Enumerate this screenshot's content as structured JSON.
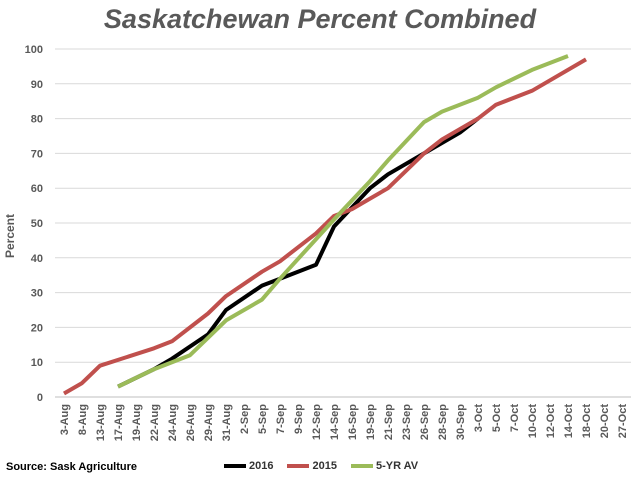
{
  "chart_data": {
    "type": "line",
    "title": "Saskatchewan Percent Combined",
    "ylabel": "Percent",
    "xlabel": "",
    "ylim": [
      0,
      100
    ],
    "yticks": [
      0,
      10,
      20,
      30,
      40,
      50,
      60,
      70,
      80,
      90,
      100
    ],
    "grid": "horizontal",
    "legend_position": "bottom",
    "categories": [
      "3-Aug",
      "8-Aug",
      "13-Aug",
      "17-Aug",
      "19-Aug",
      "22-Aug",
      "24-Aug",
      "26-Aug",
      "29-Aug",
      "31-Aug",
      "2-Sep",
      "5-Sep",
      "7-Sep",
      "9-Sep",
      "12-Sep",
      "14-Sep",
      "16-Sep",
      "19-Sep",
      "21-Sep",
      "23-Sep",
      "26-Sep",
      "28-Sep",
      "30-Sep",
      "3-Oct",
      "5-Oct",
      "7-Oct",
      "10-Oct",
      "12-Oct",
      "14-Oct",
      "18-Oct",
      "20-Oct",
      "27-Oct"
    ],
    "series": [
      {
        "name": "2016",
        "color": "#000000",
        "points": [
          [
            "17-Aug",
            3
          ],
          [
            "22-Aug",
            8
          ],
          [
            "24-Aug",
            11
          ],
          [
            "29-Aug",
            18
          ],
          [
            "31-Aug",
            25
          ],
          [
            "5-Sep",
            32
          ],
          [
            "7-Sep",
            34
          ],
          [
            "12-Sep",
            38
          ],
          [
            "14-Sep",
            49
          ],
          [
            "19-Sep",
            60
          ],
          [
            "21-Sep",
            64
          ],
          [
            "26-Sep",
            70
          ],
          [
            "30-Sep",
            76
          ],
          [
            "3-Oct",
            80
          ]
        ]
      },
      {
        "name": "2015",
        "color": "#c0504d",
        "points": [
          [
            "3-Aug",
            1
          ],
          [
            "8-Aug",
            4
          ],
          [
            "13-Aug",
            9
          ],
          [
            "22-Aug",
            14
          ],
          [
            "24-Aug",
            16
          ],
          [
            "29-Aug",
            24
          ],
          [
            "31-Aug",
            29
          ],
          [
            "5-Sep",
            36
          ],
          [
            "7-Sep",
            39
          ],
          [
            "12-Sep",
            47
          ],
          [
            "14-Sep",
            52
          ],
          [
            "16-Sep",
            54
          ],
          [
            "19-Sep",
            57
          ],
          [
            "21-Sep",
            60
          ],
          [
            "26-Sep",
            70
          ],
          [
            "28-Sep",
            74
          ],
          [
            "3-Oct",
            80
          ],
          [
            "5-Oct",
            84
          ],
          [
            "10-Oct",
            88
          ],
          [
            "18-Oct",
            97
          ]
        ]
      },
      {
        "name": "5-YR AV",
        "color": "#9bbb59",
        "points": [
          [
            "17-Aug",
            3
          ],
          [
            "22-Aug",
            8
          ],
          [
            "26-Aug",
            12
          ],
          [
            "29-Aug",
            17
          ],
          [
            "31-Aug",
            22
          ],
          [
            "5-Sep",
            28
          ],
          [
            "7-Sep",
            34
          ],
          [
            "14-Sep",
            51
          ],
          [
            "19-Sep",
            62
          ],
          [
            "21-Sep",
            68
          ],
          [
            "26-Sep",
            79
          ],
          [
            "28-Sep",
            82
          ],
          [
            "3-Oct",
            86
          ],
          [
            "5-Oct",
            89
          ],
          [
            "10-Oct",
            94
          ],
          [
            "14-Oct",
            98
          ]
        ]
      }
    ],
    "source": "Source: Sask Agriculture"
  }
}
